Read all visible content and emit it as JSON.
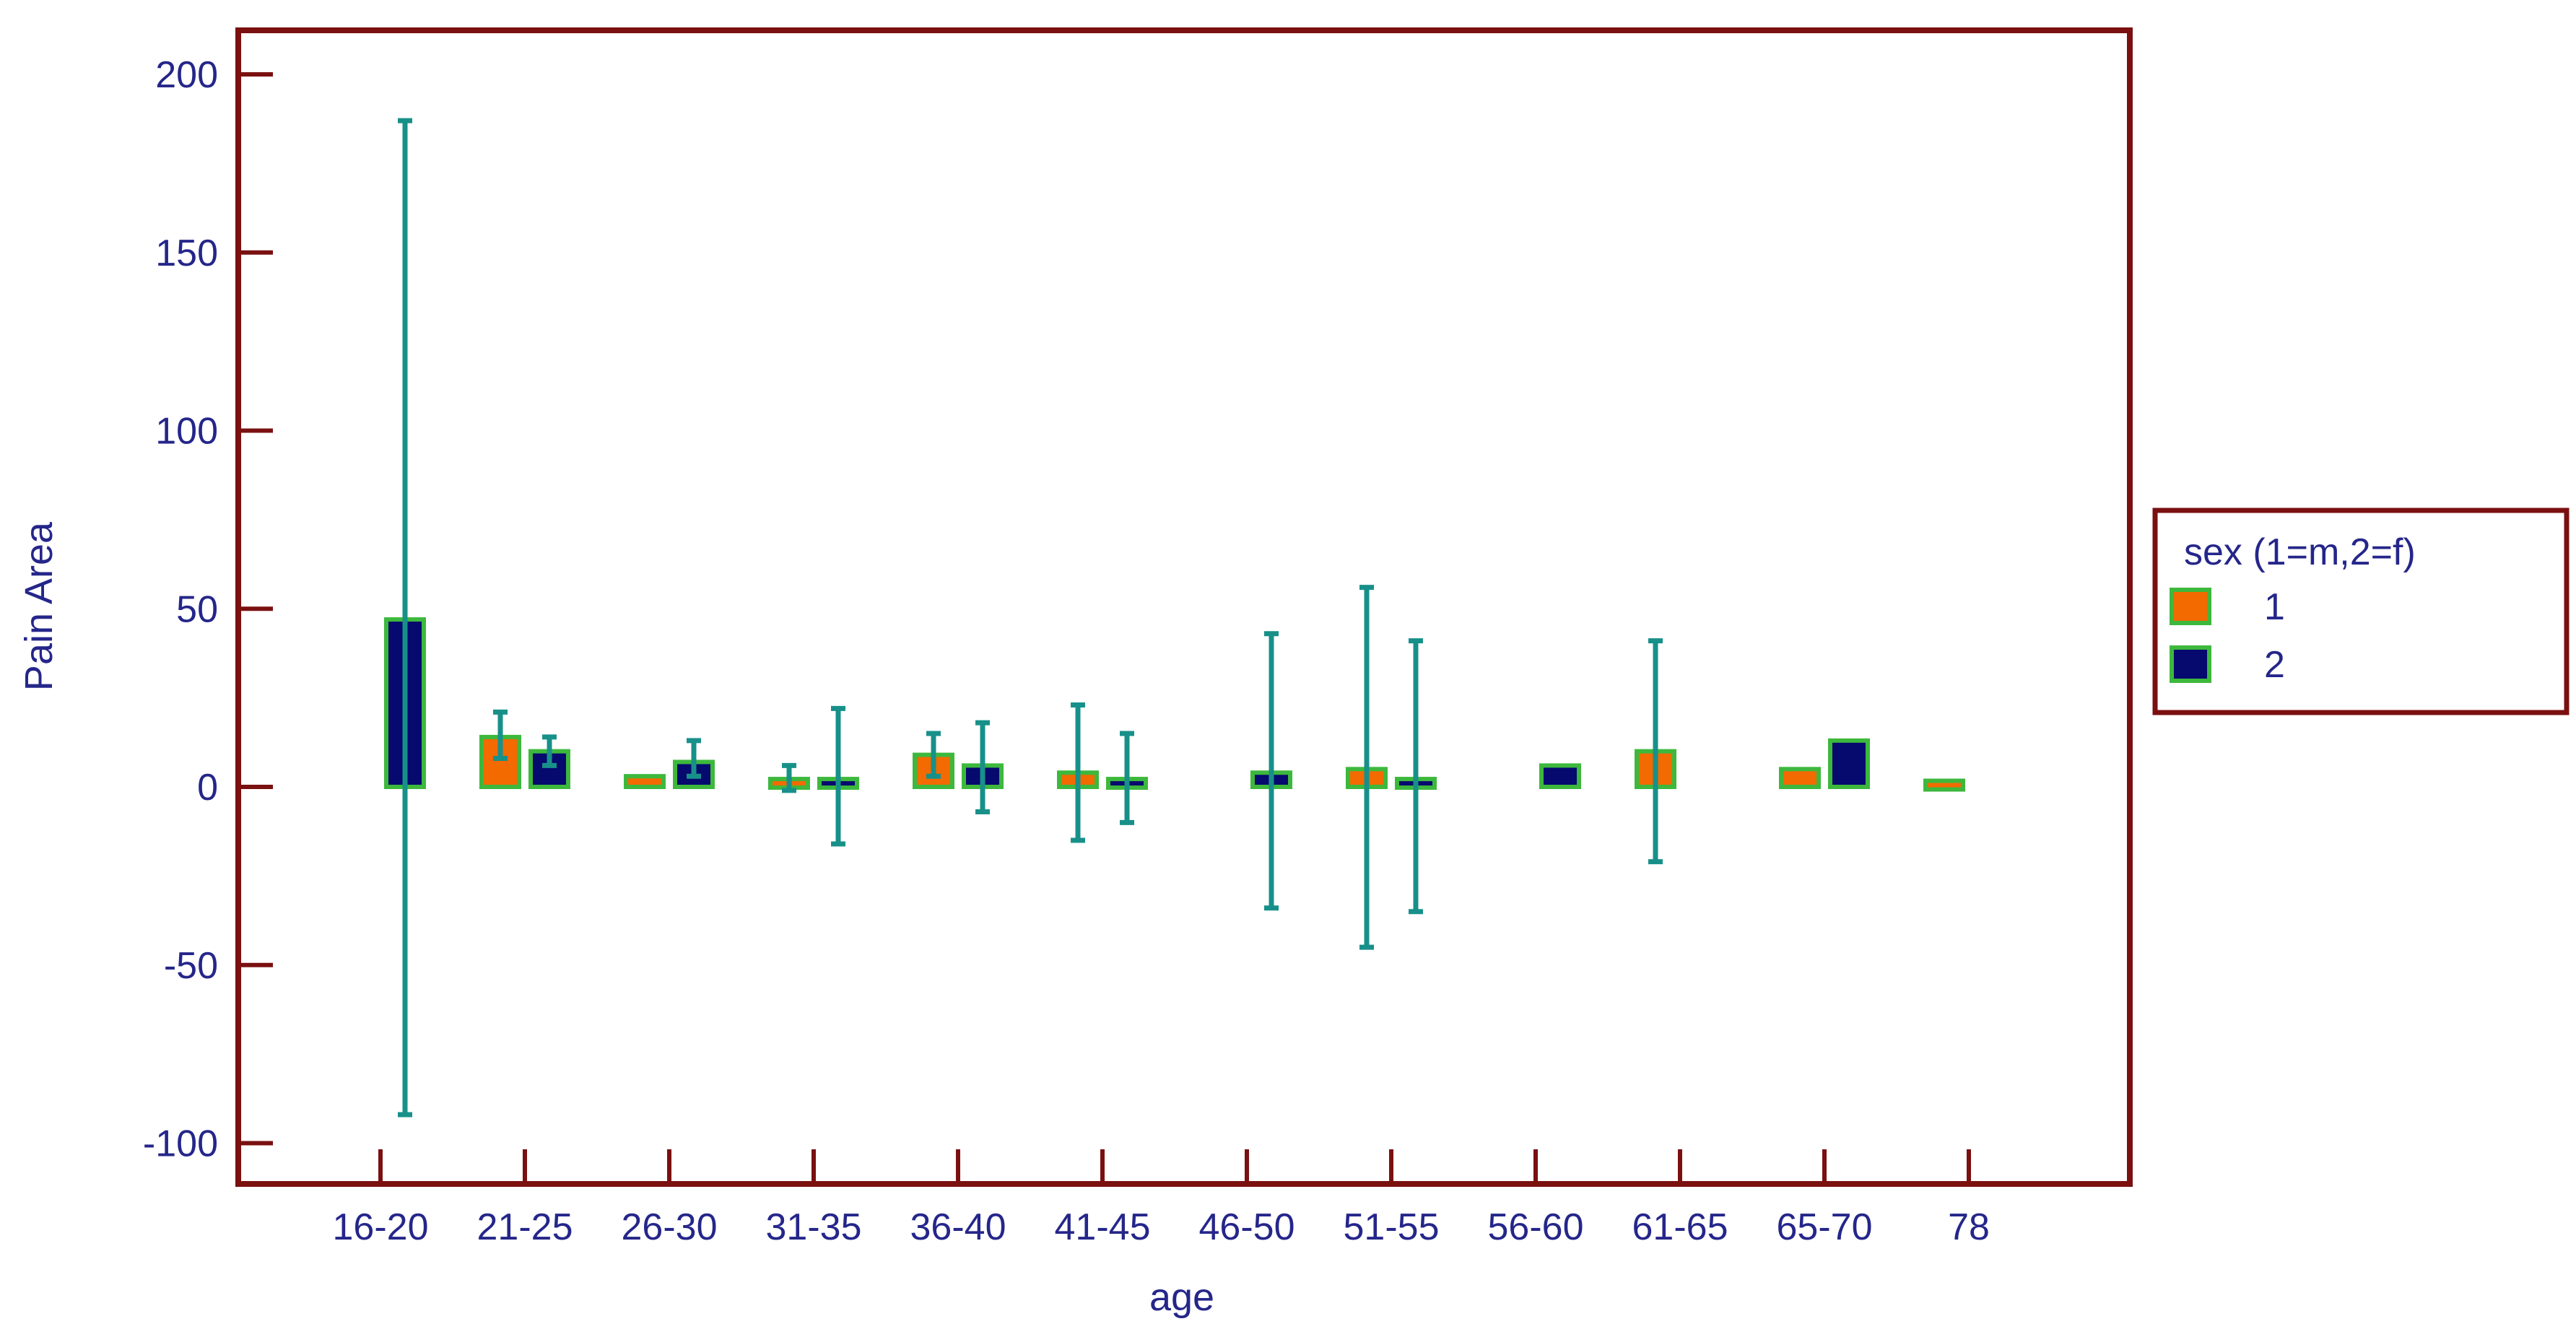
{
  "chart_data": {
    "type": "bar",
    "title": "",
    "xlabel": "age",
    "ylabel": "Pain Area",
    "ylim": [
      -100,
      200
    ],
    "yticks": [
      200,
      150,
      100,
      50,
      0,
      -50,
      -100
    ],
    "categories": [
      "16-20",
      "21-25",
      "26-30",
      "31-35",
      "36-40",
      "41-45",
      "46-50",
      "51-55",
      "56-60",
      "61-65",
      "65-70",
      "78"
    ],
    "grid": false,
    "legend": {
      "title": "sex (1=m,2=f)",
      "placement": "right"
    },
    "series": [
      {
        "name": "1",
        "color": "#f26a00",
        "values": [
          null,
          14,
          3,
          2,
          9,
          4,
          null,
          5,
          null,
          10,
          5,
          1
        ],
        "err_low": [
          null,
          8,
          null,
          -1,
          3,
          -15,
          null,
          -45,
          null,
          -21,
          null,
          null
        ],
        "err_high": [
          null,
          21,
          4,
          6,
          15,
          23,
          null,
          56,
          null,
          41,
          null,
          null
        ]
      },
      {
        "name": "2",
        "color": "#06096e",
        "values": [
          47,
          10,
          7,
          2,
          6,
          2,
          4,
          2,
          6,
          null,
          13,
          null
        ],
        "err_low": [
          -92,
          6,
          3,
          -16,
          -7,
          -10,
          -34,
          -35,
          null,
          null,
          null,
          null
        ],
        "err_high": [
          187,
          14,
          13,
          22,
          18,
          15,
          43,
          41,
          null,
          null,
          null,
          null
        ]
      }
    ],
    "colors": {
      "frame": "#7a1010",
      "bar_outline": "#3db83d",
      "error_bar": "#18908a",
      "text": "#25268a"
    }
  }
}
